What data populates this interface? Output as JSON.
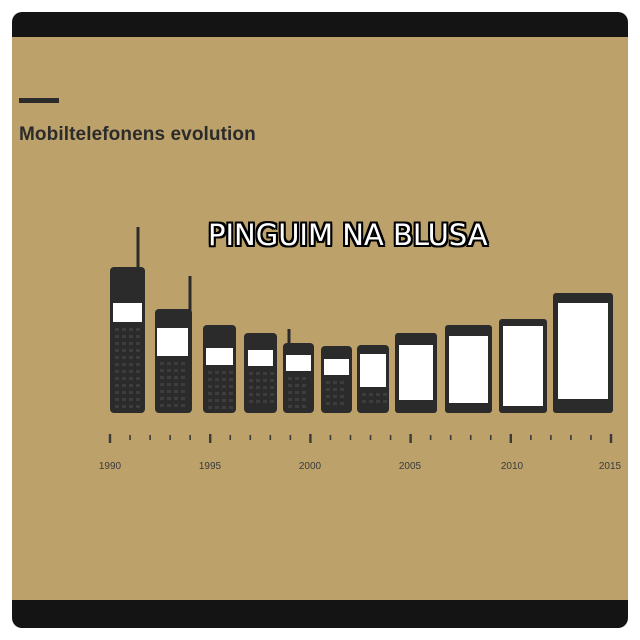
{
  "title": "Mobiltelefonens evolution",
  "overlay_text": "PINGUIM NA BLUSA",
  "colors": {
    "background": "#bca26a",
    "frame": "#141414",
    "phone_body": "#2b2b2b",
    "screen": "#ffffff"
  },
  "timeline": {
    "start_year": 1990,
    "end_year": 2015,
    "year_labels": [
      "1990",
      "1995",
      "2000",
      "2005",
      "2010",
      "2015"
    ]
  },
  "phones": [
    {
      "kind": "brick-phone",
      "antenna": true
    },
    {
      "kind": "brick-phone",
      "antenna": true
    },
    {
      "kind": "candybar-phone",
      "antenna": false
    },
    {
      "kind": "candybar-phone",
      "antenna": false
    },
    {
      "kind": "candybar-phone",
      "antenna": true
    },
    {
      "kind": "candybar-phone",
      "antenna": false
    },
    {
      "kind": "candybar-phone",
      "antenna": false
    },
    {
      "kind": "smartphone",
      "antenna": false
    },
    {
      "kind": "smartphone",
      "antenna": false
    },
    {
      "kind": "smartphone",
      "antenna": false
    },
    {
      "kind": "smartphone",
      "antenna": false
    }
  ]
}
